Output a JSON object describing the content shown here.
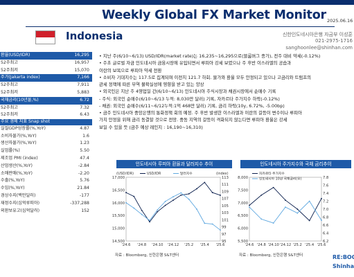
{
  "header": {
    "title": "Weekly Global FX Market Monitor",
    "date": "2025.06.16",
    "country": "Indonesia",
    "org": "신한인도네시아은행 자금부 이성훈",
    "phone": "021-2975-1716",
    "email": "sanghoonlee@shinhan.com"
  },
  "colors": {
    "navy": "#0a2e6e",
    "accent_blue": "#1e5aa8",
    "flag_red": "#d0202b",
    "line_dark": "#0b1f4d",
    "line_light": "#5fa8e0"
  },
  "table": {
    "rows": [
      {
        "label": "환율(USD/IDR)",
        "value": "16,295",
        "kind": "head"
      },
      {
        "label": "52주최고",
        "value": "16,957",
        "kind": "sub"
      },
      {
        "label": "52주최저",
        "value": "15,070",
        "kind": "sub"
      },
      {
        "label": "주가(Jakarta index)",
        "value": "7,166",
        "kind": "head"
      },
      {
        "label": "52주최고",
        "value": "7,911",
        "kind": "sub"
      },
      {
        "label": "52주최저",
        "value": "5,883",
        "kind": "sub"
      },
      {
        "label": "국채금리(10년물,%)",
        "value": "6.72",
        "kind": "head"
      },
      {
        "label": "52주최고",
        "value": "7.32",
        "kind": "sub"
      },
      {
        "label": "52주최저",
        "value": "6.43",
        "kind": "sub"
      },
      {
        "label": "주요 경제 지표 Snap shot",
        "value": "",
        "kind": "snap-head"
      },
      {
        "label": "실질GDP성장률(%,YoY)",
        "value": "4.87",
        "kind": "sub"
      },
      {
        "label": "소비자물가(%,YoY)",
        "value": "1.6",
        "kind": "sub"
      },
      {
        "label": "생산자물가(%,YoY)",
        "value": "1.23",
        "kind": "sub"
      },
      {
        "label": "실업률(%)",
        "value": "5.50",
        "kind": "sub"
      },
      {
        "label": "제조업 PMI (index)",
        "value": "47.4",
        "kind": "sub"
      },
      {
        "label": "산업생산(%,YoY)",
        "value": "-2.84",
        "kind": "sub"
      },
      {
        "label": "소매판매(%,YoY)",
        "value": "-2.20",
        "kind": "sub"
      },
      {
        "label": "수출(%,YoY)",
        "value": "5.76",
        "kind": "sub"
      },
      {
        "label": "수입(%,YoY)",
        "value": "21.84",
        "kind": "sub"
      },
      {
        "label": "경상수지(백만달러)",
        "value": "-177",
        "kind": "sub"
      },
      {
        "label": "재정수지(십억루피아)",
        "value": "-337,288",
        "kind": "sub"
      },
      {
        "label": "외환보유고(십억달러)",
        "value": "152",
        "kind": "sub"
      }
    ]
  },
  "commentary": {
    "lines": [
      "• 지난 주(6/10~6/13) USD/IDR(market rate)는 16,235~16,295으로(블룸버그 종가), 전주 대비 약세(-0.12%)",
      "• 주초 글로벌 자금 인도네시아 금융시장에 유입되면서 루피아 강세 보였으나 주 후반 이스라엘의 공습과",
      "   이란의 보복으로 루피아 약세 전환",
      "• 소비자 기대지수는 117.5로 집계되며 이전치 121.7 하회. 물가와 환율 모두 안정되고 있으나 고금리와 트럼프의",
      "   관세 정책에 따른 무역 불확실성에 영향을 받고 있는 양상",
      "• 외국인은 지난 주 4영업일 간(6/10~6/13) 인도네시아 주식시장과 채권시장에서 순매수 기록",
      "   - 주식: 외국인 순매수(6/10~6/13 누적: 8,030만 달러) 기록, 자카르타 주가지수 하락(-0.12%)",
      "   - 채권: 외국인 순매수(6/11~6/12누적:1억 468만 달러) 기록, 금리 하락(10y, 6.72%, -5.00bp)",
      "• 금주 인도네시아 중앙은행의 통화정책 회의 예정. 주 후반 발생한 이스라엘과 이란의 갈등이 변수이나 루피아",
      "   가치 안정을 위해 금리 동결할 것으로 전망. 중동 지역의 갈등이 격화되지 않는다면 루피아 환율은 강세",
      "   보일 수 있을 듯 (금주 예상 레인지 : 16,190~16,310)"
    ]
  },
  "charts": {
    "left_source": "자료 : Bloomberg, 신한은행 S&T센터",
    "right_source": "자료 : Bloomberg, 신한은행 S&T센터"
  },
  "chart_data": [
    {
      "type": "line",
      "title": "인도네시아 루피아 환율과 달러지수 추이",
      "x": [
        "'24.6",
        "'24.7",
        "'24.8",
        "'24.9",
        "'24.10",
        "'24.11",
        "'24.12",
        "'25.1",
        "'25.2",
        "'25.3",
        "'25.4",
        "'25.5",
        "'25.6"
      ],
      "series": [
        {
          "name": "USD/IDR",
          "axis": "left",
          "values": [
            16400,
            16250,
            15700,
            15250,
            15650,
            15900,
            16100,
            16300,
            16350,
            16550,
            16800,
            16400,
            16295
          ]
        },
        {
          "name": "달러지수",
          "axis": "right",
          "values": [
            105.8,
            104.3,
            102.5,
            100.8,
            103.8,
            106.2,
            107.5,
            108.6,
            106.8,
            104.0,
            100.0,
            99.8,
            98.1
          ]
        }
      ],
      "ylabel_left": "(USD/IDR)",
      "ylabel_right": "(index)",
      "ylim_left": [
        14500,
        17000
      ],
      "yticks_left": [
        14500,
        15000,
        15500,
        16000,
        16500,
        17000
      ],
      "ylim_right": [
        95,
        113
      ],
      "yticks_right": [
        95,
        97,
        99,
        101,
        103,
        105,
        107,
        109,
        111,
        113
      ],
      "legend": "top"
    },
    {
      "type": "line",
      "title": "인도네시아 주가지수와 국채 금리추이",
      "x": [
        "'24.6",
        "'24.8",
        "'24.10",
        "'24.12",
        "'25.2",
        "'25.4",
        "'25.6"
      ],
      "series": [
        {
          "name": "자카르타 주가지수",
          "axis": "left",
          "values": [
            6900,
            7300,
            7600,
            7100,
            6750,
            6300,
            7166
          ]
        },
        {
          "name": "인도네시아 10년 국채금리(우)",
          "axis": "right",
          "values": [
            7.05,
            6.75,
            6.65,
            7.05,
            6.9,
            7.2,
            6.72
          ]
        }
      ],
      "ylim_left": [
        5500,
        8000
      ],
      "yticks_left": [
        5500,
        6000,
        6500,
        7000,
        7500,
        8000
      ],
      "ylim_right": [
        6.2,
        7.8
      ],
      "yticks_right": [
        6.2,
        6.4,
        6.6,
        6.8,
        7.0,
        7.2,
        7.4,
        7.6,
        7.8
      ],
      "legend": "top"
    }
  ]
}
